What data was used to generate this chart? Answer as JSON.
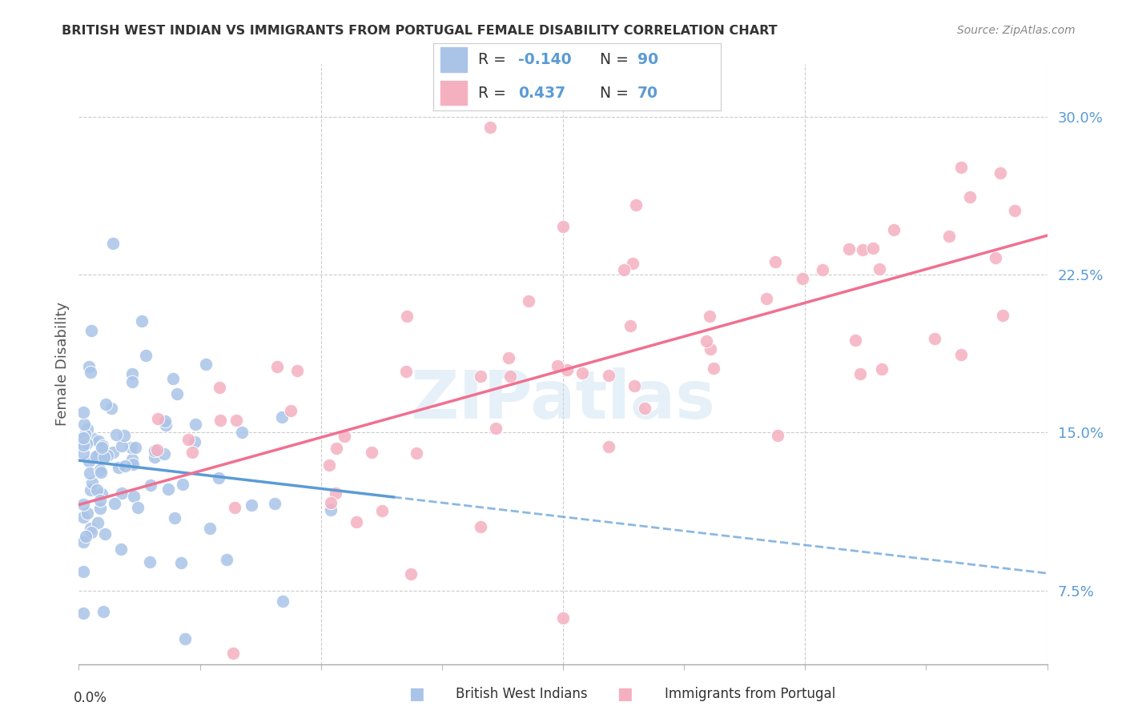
{
  "title": "BRITISH WEST INDIAN VS IMMIGRANTS FROM PORTUGAL FEMALE DISABILITY CORRELATION CHART",
  "source": "Source: ZipAtlas.com",
  "ylabel": "Female Disability",
  "right_yticks": [
    0.075,
    0.15,
    0.225,
    0.3
  ],
  "right_yticklabels": [
    "7.5%",
    "15.0%",
    "22.5%",
    "30.0%"
  ],
  "xlim": [
    0.0,
    0.2
  ],
  "ylim": [
    0.04,
    0.325
  ],
  "blue_R": -0.14,
  "blue_N": 90,
  "pink_R": 0.437,
  "pink_N": 70,
  "blue_color": "#aac4e8",
  "pink_color": "#f5b0c0",
  "blue_line_color": "#5b9bd5",
  "pink_line_color": "#f07090",
  "watermark": "ZIPatlas",
  "legend_label_blue": "British West Indians",
  "legend_label_pink": "Immigrants from Portugal",
  "legend_text_color": "#5b9bd5",
  "title_color": "#333333",
  "source_color": "#888888"
}
